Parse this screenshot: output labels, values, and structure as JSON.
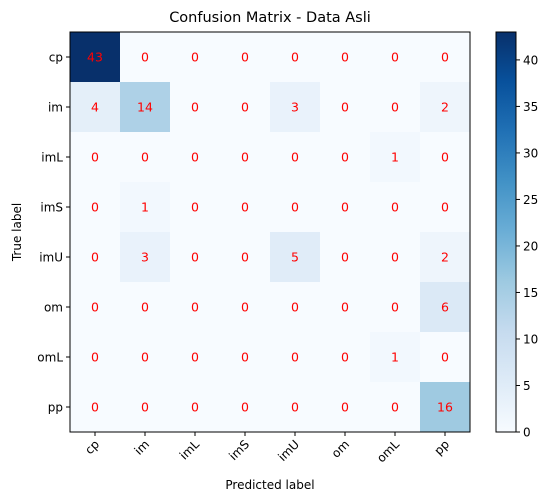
{
  "chart_data": {
    "type": "heatmap",
    "title": "Confusion Matrix - Data Asli",
    "xlabel": "Predicted label",
    "ylabel": "True label",
    "x_categories": [
      "cp",
      "im",
      "imL",
      "imS",
      "imU",
      "om",
      "omL",
      "pp"
    ],
    "y_categories": [
      "cp",
      "im",
      "imL",
      "imS",
      "imU",
      "om",
      "omL",
      "pp"
    ],
    "values": [
      [
        43,
        0,
        0,
        0,
        0,
        0,
        0,
        0
      ],
      [
        4,
        14,
        0,
        0,
        3,
        0,
        0,
        2
      ],
      [
        0,
        0,
        0,
        0,
        0,
        0,
        1,
        0
      ],
      [
        0,
        1,
        0,
        0,
        0,
        0,
        0,
        0
      ],
      [
        0,
        3,
        0,
        0,
        5,
        0,
        0,
        2
      ],
      [
        0,
        0,
        0,
        0,
        0,
        0,
        0,
        6
      ],
      [
        0,
        0,
        0,
        0,
        0,
        0,
        1,
        0
      ],
      [
        0,
        0,
        0,
        0,
        0,
        0,
        0,
        16
      ]
    ],
    "colorbar": {
      "min": 0,
      "max": 43,
      "ticks": [
        0,
        5,
        10,
        15,
        20,
        25,
        30,
        35,
        40
      ]
    },
    "colormap": "Blues",
    "cell_text_color": "#ff0000"
  }
}
